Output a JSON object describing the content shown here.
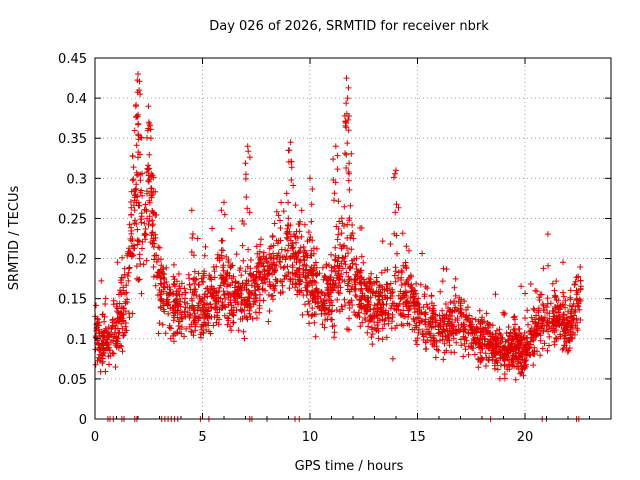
{
  "chart_data": {
    "type": "scatter",
    "title": "Day 026 of 2026, SRMTID for receiver nbrk",
    "xlabel": "GPS time / hours",
    "ylabel": "SRMTID / TECUs",
    "xlim": [
      0,
      24
    ],
    "ylim": [
      0,
      0.45
    ],
    "x_ticks": [
      0,
      5,
      10,
      15,
      20
    ],
    "x_tick_labels": [
      "0",
      "5",
      "10",
      "15",
      "20"
    ],
    "y_ticks": [
      0,
      0.05,
      0.1,
      0.15,
      0.2,
      0.25,
      0.3,
      0.35,
      0.4,
      0.45
    ],
    "y_tick_labels": [
      "0",
      "0.05",
      "0.1",
      "0.15",
      "0.2",
      "0.25",
      "0.3",
      "0.35",
      "0.4",
      "0.45"
    ],
    "grid": true,
    "marker": "+",
    "color": "#e00000",
    "envelope": {
      "hours": [
        0,
        0.3,
        0.6,
        1,
        1.4,
        1.8,
        2.1,
        2.5,
        2.9,
        3.3,
        3.8,
        4.5,
        5,
        5.5,
        6,
        6.5,
        7,
        7.5,
        8,
        8.5,
        9,
        9.5,
        10,
        10.5,
        11,
        11.5,
        12,
        12.5,
        13,
        13.5,
        14,
        14.5,
        15,
        15.5,
        16,
        16.5,
        17,
        17.5,
        18,
        18.5,
        19,
        19.5,
        20,
        20.5,
        21,
        21.5,
        22,
        22.5
      ],
      "median": [
        0.11,
        0.09,
        0.1,
        0.11,
        0.15,
        0.25,
        0.23,
        0.27,
        0.18,
        0.15,
        0.14,
        0.14,
        0.14,
        0.15,
        0.17,
        0.15,
        0.15,
        0.17,
        0.18,
        0.19,
        0.21,
        0.2,
        0.17,
        0.15,
        0.16,
        0.19,
        0.17,
        0.15,
        0.14,
        0.14,
        0.15,
        0.16,
        0.13,
        0.12,
        0.11,
        0.12,
        0.12,
        0.11,
        0.1,
        0.09,
        0.08,
        0.09,
        0.08,
        0.12,
        0.12,
        0.13,
        0.11,
        0.15
      ],
      "spread": [
        0.04,
        0.03,
        0.03,
        0.04,
        0.05,
        0.09,
        0.08,
        0.07,
        0.06,
        0.04,
        0.04,
        0.04,
        0.04,
        0.04,
        0.05,
        0.04,
        0.04,
        0.04,
        0.04,
        0.05,
        0.06,
        0.05,
        0.05,
        0.04,
        0.05,
        0.07,
        0.05,
        0.04,
        0.04,
        0.04,
        0.05,
        0.04,
        0.04,
        0.04,
        0.03,
        0.03,
        0.04,
        0.03,
        0.03,
        0.03,
        0.03,
        0.03,
        0.03,
        0.04,
        0.04,
        0.04,
        0.03,
        0.05
      ]
    },
    "peaks": [
      {
        "x": 2.0,
        "y": 0.43
      },
      {
        "x": 2.05,
        "y": 0.41
      },
      {
        "x": 1.9,
        "y": 0.39
      },
      {
        "x": 11.7,
        "y": 0.425
      },
      {
        "x": 11.75,
        "y": 0.4
      },
      {
        "x": 11.8,
        "y": 0.36
      },
      {
        "x": 2.5,
        "y": 0.37
      },
      {
        "x": 2.6,
        "y": 0.35
      },
      {
        "x": 7.1,
        "y": 0.34
      },
      {
        "x": 9.1,
        "y": 0.345
      },
      {
        "x": 11.2,
        "y": 0.34
      },
      {
        "x": 14.0,
        "y": 0.31
      },
      {
        "x": 6.0,
        "y": 0.27
      },
      {
        "x": 4.5,
        "y": 0.26
      },
      {
        "x": 10.0,
        "y": 0.3
      }
    ],
    "zeros": [
      0.6,
      0.7,
      0.85,
      1.25,
      1.35,
      1.85,
      1.95,
      3.1,
      3.25,
      3.4,
      3.55,
      3.7,
      3.85,
      4.9,
      5.3,
      7.2,
      7.3,
      8.0,
      9.3,
      9.5,
      18.4,
      20.8,
      21.0,
      22.4,
      22.5
    ]
  }
}
